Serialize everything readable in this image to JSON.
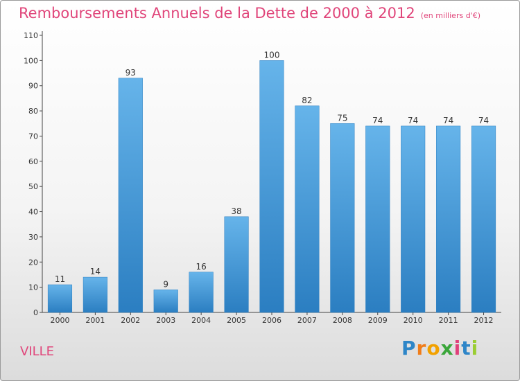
{
  "title": "Remboursements Annuels de la Dette de 2000 à 2012",
  "unit_note": "(en milliers d'€)",
  "commune": "VILLE",
  "brand": {
    "letters": [
      "P",
      "r",
      "o",
      "x",
      "i",
      "t",
      "i"
    ],
    "colors": [
      "#2e86c8",
      "#f07d1a",
      "#f2a100",
      "#3aa63a",
      "#e0407a",
      "#2e86c8",
      "#9acd32"
    ]
  },
  "colors": {
    "bar": "#4a9fdc",
    "bar_top": "#66b4ea",
    "bar_bottom": "#2b7ec1",
    "title": "#e0457a"
  },
  "chart_data": {
    "type": "bar",
    "title": "Remboursements Annuels de la Dette de 2000 à 2012",
    "categories": [
      "2000",
      "2001",
      "2002",
      "2003",
      "2004",
      "2005",
      "2006",
      "2007",
      "2008",
      "2009",
      "2010",
      "2011",
      "2012"
    ],
    "values": [
      11,
      14,
      93,
      9,
      16,
      38,
      100,
      82,
      75,
      74,
      74,
      74,
      74
    ],
    "ylim": [
      0,
      110
    ],
    "yticks": [
      0,
      10,
      20,
      30,
      40,
      50,
      60,
      70,
      80,
      90,
      100,
      110
    ],
    "grid": false,
    "legend": "none",
    "xlabel": "",
    "ylabel": ""
  }
}
